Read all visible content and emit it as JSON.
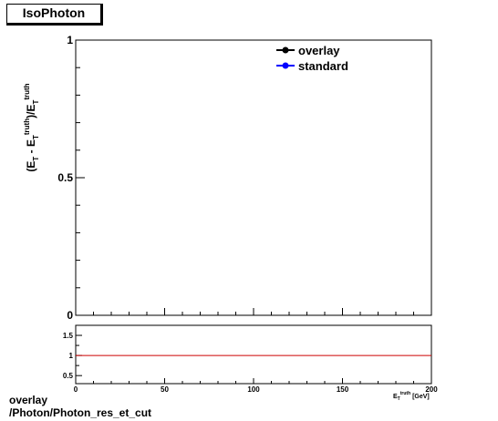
{
  "title": "IsoPhoton",
  "footer": {
    "line1": "overlay",
    "line2": "/Photon/Photon_res_et_cut"
  },
  "chart_data": [
    {
      "type": "line",
      "ylabel": "(E_T - E_T^truth)/E_T^truth",
      "xlim": [
        0,
        200
      ],
      "ylim": [
        0,
        1
      ],
      "yticks": [
        "0",
        "0.5",
        "1"
      ],
      "grid": false,
      "legend_placement": "top-right",
      "series": [
        {
          "name": "overlay",
          "color": "#000000",
          "x": [],
          "y": []
        },
        {
          "name": "standard",
          "color": "#0000ff",
          "x": [],
          "y": []
        }
      ]
    },
    {
      "type": "line",
      "xlabel": "E_T^truth [GeV]",
      "xlim": [
        0,
        200
      ],
      "ylim": [
        0.3,
        1.75
      ],
      "xticks": [
        "0",
        "50",
        "100",
        "150",
        "200"
      ],
      "yticks": [
        "0.5",
        "1",
        "1.5"
      ],
      "reference_line": {
        "y": 1,
        "color": "#cc0000"
      },
      "grid": false
    }
  ]
}
